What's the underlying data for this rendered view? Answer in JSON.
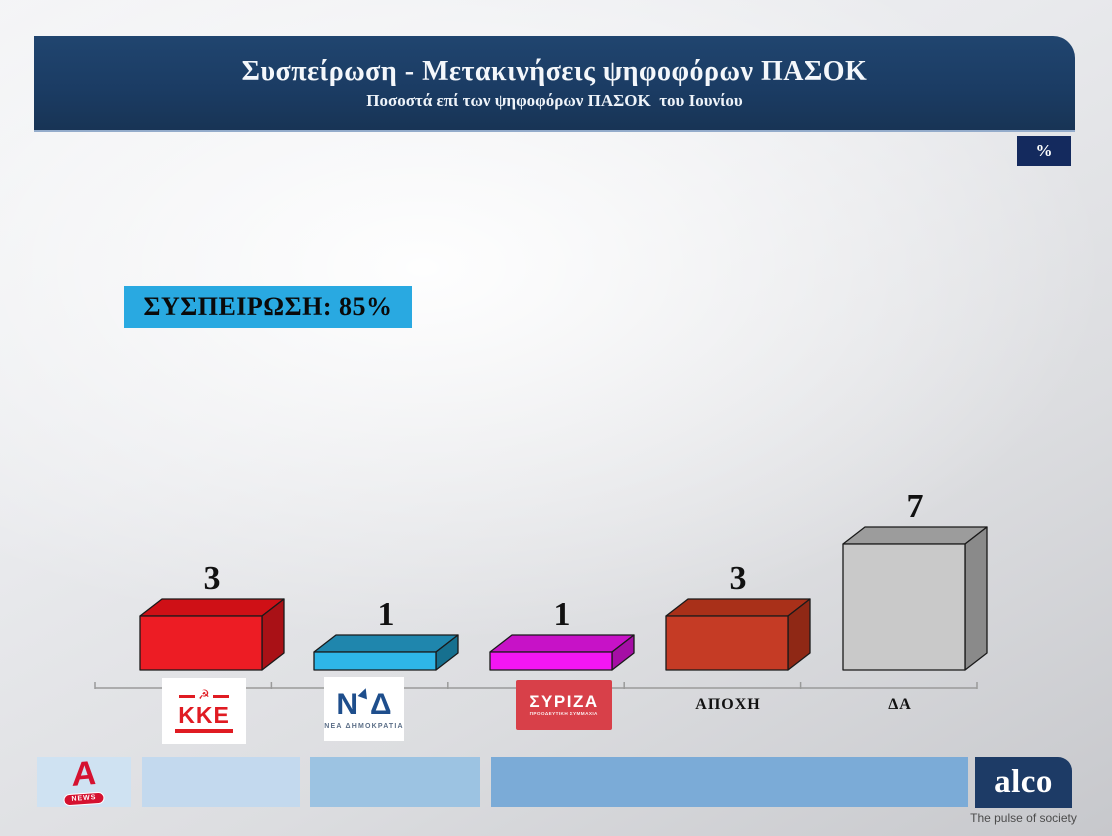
{
  "header": {
    "title": "Συσπείρωση - Μετακινήσεις ψηφοφόρων ΠΑΣΟΚ",
    "subtitle": "Ποσοστά επί των ψηφοφόρων ΠΑΣΟΚ  του Ιουνίου",
    "unit_badge": "%"
  },
  "annotation": {
    "cohesion_label": "ΣΥΣΠΕΙΡΩΣΗ: 85%"
  },
  "chart_data": {
    "type": "bar",
    "style": "3d-bars",
    "title": "Συσπείρωση - Μετακινήσεις ψηφοφόρων ΠΑΣΟΚ",
    "subtitle": "Ποσοστά επί των ψηφοφόρων ΠΑΣΟΚ  του Ιουνίου",
    "unit": "%",
    "categories": [
      "ΚΚΕ",
      "ΝΕΑ ΔΗΜΟΚΡΑΤΙΑ",
      "ΣΥΡΙΖΑ",
      "ΑΠΟΧΗ",
      "ΔΑ"
    ],
    "values": [
      3,
      1,
      1,
      3,
      7
    ],
    "annotation": "ΣΥΣΠΕΙΡΩΣΗ: 85%",
    "ylim": [
      0,
      8
    ],
    "grid": false,
    "legend": false,
    "bar_colors": [
      {
        "front": "#ed1c24",
        "top": "#cf1016",
        "side": "#a91116"
      },
      {
        "front": "#2eb6e8",
        "top": "#1f86ad",
        "side": "#16708f"
      },
      {
        "front": "#f316f3",
        "top": "#c712c7",
        "side": "#a50ea5"
      },
      {
        "front": "#c53b25",
        "top": "#a93019",
        "side": "#8f2815"
      },
      {
        "front": "#c9c9c9",
        "top": "#9c9c9c",
        "side": "#8a8a8a"
      }
    ]
  },
  "category_logos": {
    "kke": {
      "text": "ΚΚΕ",
      "icon": "hammer-sickle-icon",
      "color": "#e01b22"
    },
    "nd": {
      "letters": [
        "Ν",
        "Δ"
      ],
      "sub": "ΝΕΑ ΔΗΜΟΚΡΑΤΙΑ",
      "color": "#1e4e8c"
    },
    "syriza": {
      "text": "ΣΥΡΙΖΑ",
      "sub": "ΠΡΟΟΔΕΥΤΙΚΗ ΣΥΜΜΑΧΙΑ",
      "color": "#d84049"
    }
  },
  "footer": {
    "alpha_news": {
      "letter": "A",
      "badge": "NEWS",
      "color": "#d51130"
    },
    "alco": {
      "name": "alco",
      "tagline": "The pulse of society",
      "color": "#1d3b66"
    },
    "segment_colors": [
      "#cfe2f2",
      "#c3d9ee",
      "#9cc3e2",
      "#7babd7"
    ]
  },
  "colors": {
    "header_navy": "#1b3c64",
    "badge_navy": "#142a5e",
    "cohesion_blue": "#29a9e1",
    "axis_gray": "#9a9a9a"
  }
}
